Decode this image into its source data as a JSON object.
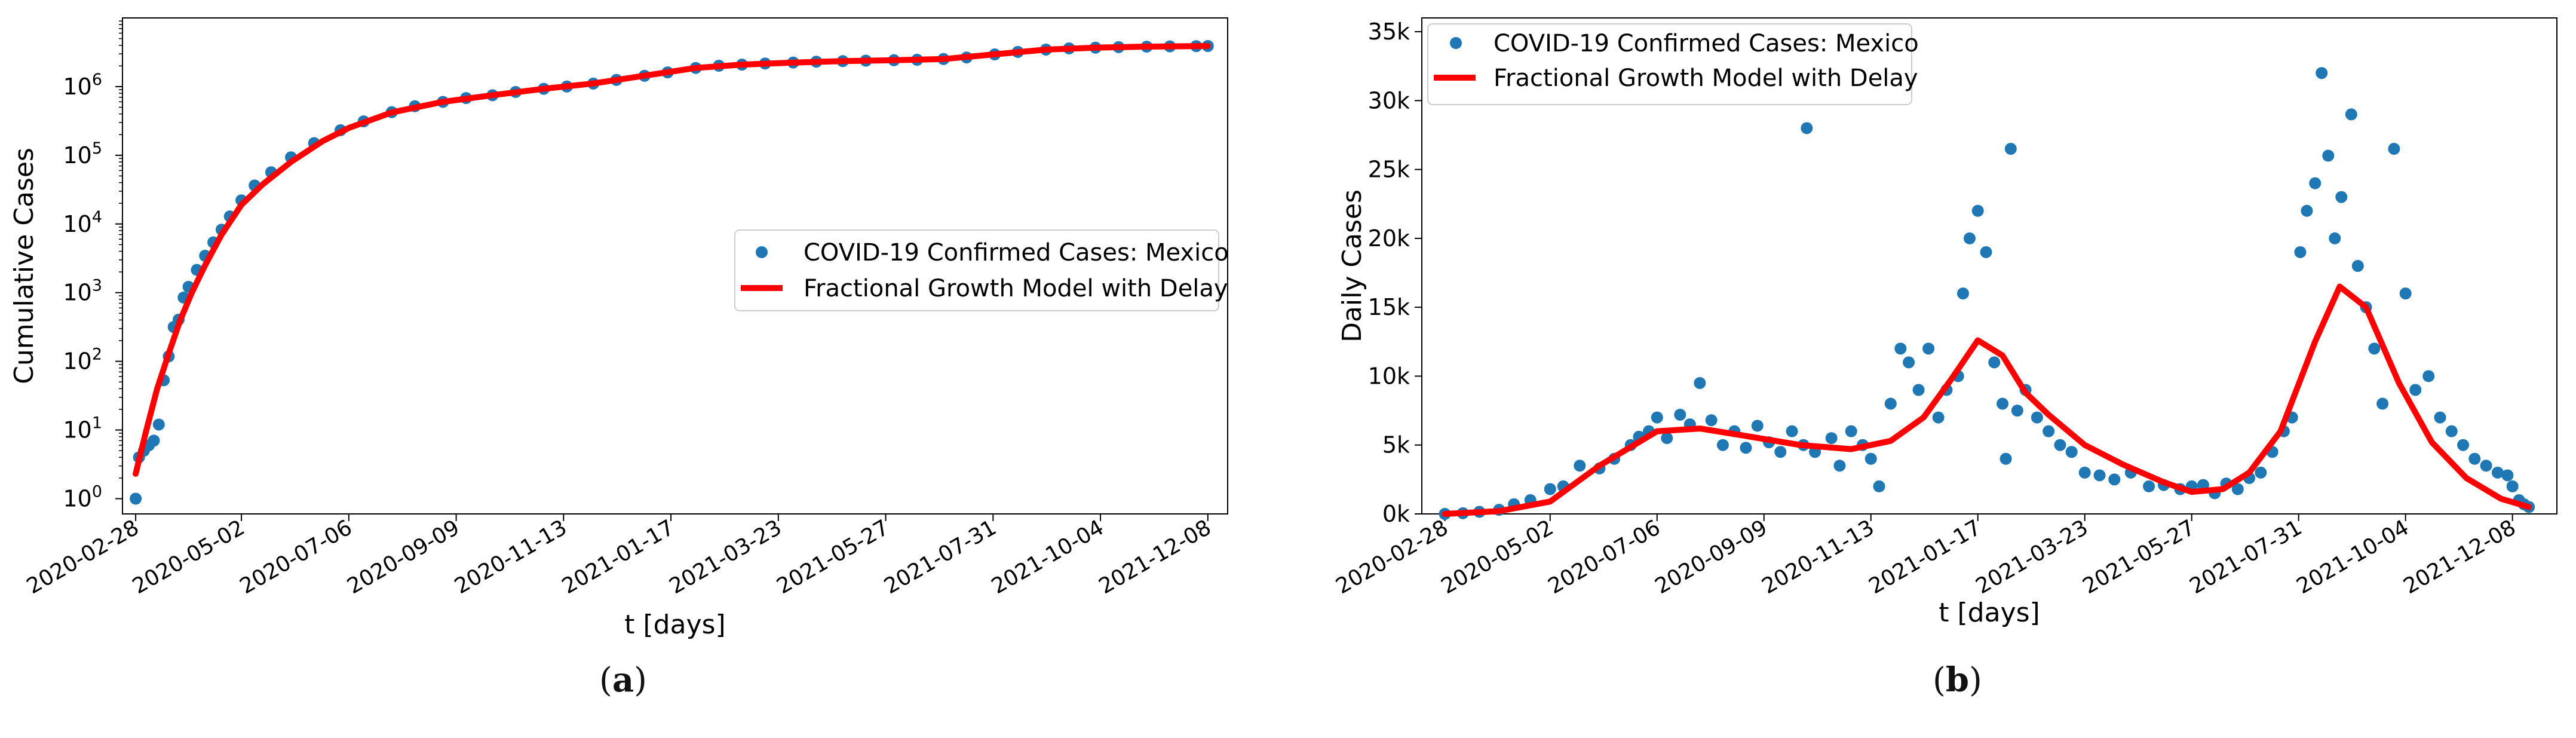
{
  "colors": {
    "points": "#1f77b4",
    "model": "#ff0000",
    "axis": "#000000"
  },
  "chart_data": [
    {
      "type": "scatter",
      "panel_label": "a",
      "xlabel": "t [days]",
      "ylabel": "Cumulative Cases",
      "yscale": "log",
      "ylim": [
        0.6,
        10000000
      ],
      "xlim": [
        "2020-02-20",
        "2021-12-20"
      ],
      "x_ticks": [
        "2020-02-28",
        "2020-05-02",
        "2020-07-06",
        "2020-09-09",
        "2020-11-13",
        "2021-01-17",
        "2021-03-23",
        "2021-05-27",
        "2021-07-31",
        "2021-10-04",
        "2021-12-08"
      ],
      "y_ticks": [
        {
          "value": 1,
          "base": "10",
          "exp": "0"
        },
        {
          "value": 10,
          "base": "10",
          "exp": "1"
        },
        {
          "value": 100,
          "base": "10",
          "exp": "2"
        },
        {
          "value": 1000,
          "base": "10",
          "exp": "3"
        },
        {
          "value": 10000,
          "base": "10",
          "exp": "4"
        },
        {
          "value": 100000,
          "base": "10",
          "exp": "5"
        },
        {
          "value": 1000000,
          "base": "10",
          "exp": "6"
        }
      ],
      "legend_position": "center-right",
      "series": [
        {
          "name": "COVID-19 Confirmed Cases: Mexico",
          "kind": "points",
          "x": [
            "2020-02-28",
            "2020-03-01",
            "2020-03-04",
            "2020-03-07",
            "2020-03-10",
            "2020-03-13",
            "2020-03-16",
            "2020-03-19",
            "2020-03-22",
            "2020-03-25",
            "2020-03-28",
            "2020-03-31",
            "2020-04-05",
            "2020-04-10",
            "2020-04-15",
            "2020-04-20",
            "2020-04-25",
            "2020-05-02",
            "2020-05-10",
            "2020-05-20",
            "2020-06-01",
            "2020-06-15",
            "2020-07-01",
            "2020-07-15",
            "2020-08-01",
            "2020-08-15",
            "2020-09-01",
            "2020-09-15",
            "2020-10-01",
            "2020-10-15",
            "2020-11-01",
            "2020-11-15",
            "2020-12-01",
            "2020-12-15",
            "2021-01-01",
            "2021-01-15",
            "2021-02-01",
            "2021-02-15",
            "2021-03-01",
            "2021-03-15",
            "2021-04-01",
            "2021-04-15",
            "2021-05-01",
            "2021-05-15",
            "2021-06-01",
            "2021-06-15",
            "2021-07-01",
            "2021-07-15",
            "2021-08-01",
            "2021-08-15",
            "2021-09-01",
            "2021-09-15",
            "2021-10-01",
            "2021-10-15",
            "2021-11-01",
            "2021-11-15",
            "2021-12-01",
            "2021-12-08"
          ],
          "y": [
            1,
            4,
            5,
            6,
            7,
            12,
            53,
            118,
            316,
            405,
            848,
            1215,
            2143,
            3441,
            5399,
            8261,
            12872,
            22088,
            36327,
            56594,
            93435,
            150264,
            231770,
            311486,
            424637,
            517714,
            599560,
            680931,
            748315,
            834910,
            929392,
            1003253,
            1107071,
            1250044,
            1437185,
            1609735,
            1869708,
            2013563,
            2089281,
            2169007,
            2242963,
            2304096,
            2348873,
            2387512,
            2421000,
            2458000,
            2520000,
            2655000,
            2943000,
            3200000,
            3460000,
            3601000,
            3690000,
            3757000,
            3817000,
            3852000,
            3884000,
            3900000
          ]
        },
        {
          "name": "Fractional Growth Model with Delay",
          "kind": "line",
          "x": [
            "2020-02-28",
            "2020-03-05",
            "2020-03-12",
            "2020-03-19",
            "2020-03-26",
            "2020-04-02",
            "2020-04-10",
            "2020-04-20",
            "2020-05-02",
            "2020-05-15",
            "2020-06-01",
            "2020-06-20",
            "2020-07-06",
            "2020-08-01",
            "2020-09-01",
            "2020-10-01",
            "2020-11-01",
            "2020-12-01",
            "2021-01-01",
            "2021-02-01",
            "2021-03-01",
            "2021-04-01",
            "2021-05-01",
            "2021-06-01",
            "2021-07-01",
            "2021-08-01",
            "2021-09-01",
            "2021-10-01",
            "2021-11-01",
            "2021-12-08"
          ],
          "y": [
            2.3,
            9,
            40,
            130,
            400,
            1000,
            2500,
            7000,
            19000,
            38000,
            80000,
            160000,
            250000,
            420000,
            600000,
            750000,
            930000,
            1110000,
            1440000,
            1870000,
            2090000,
            2240000,
            2350000,
            2420000,
            2520000,
            2950000,
            3460000,
            3690000,
            3820000,
            3900000
          ]
        }
      ]
    },
    {
      "type": "scatter",
      "panel_label": "b",
      "xlabel": "t [days]",
      "ylabel": "Daily Cases",
      "ylim": [
        0,
        36000
      ],
      "xlim": [
        "2020-02-14",
        "2022-01-04"
      ],
      "x_ticks": [
        "2020-02-28",
        "2020-05-02",
        "2020-07-06",
        "2020-09-09",
        "2020-11-13",
        "2021-01-17",
        "2021-03-23",
        "2021-05-27",
        "2021-07-31",
        "2021-10-04",
        "2021-12-08"
      ],
      "y_ticks": [
        {
          "value": 0,
          "label": "0k"
        },
        {
          "value": 5000,
          "label": "5k"
        },
        {
          "value": 10000,
          "label": "10k"
        },
        {
          "value": 15000,
          "label": "15k"
        },
        {
          "value": 20000,
          "label": "20k"
        },
        {
          "value": 25000,
          "label": "25k"
        },
        {
          "value": 30000,
          "label": "30k"
        },
        {
          "value": 35000,
          "label": "35k"
        }
      ],
      "legend_position": "top-left",
      "series": [
        {
          "name": "COVID-19 Confirmed Cases: Mexico",
          "kind": "points",
          "x": [
            "2020-02-28",
            "2020-03-10",
            "2020-03-20",
            "2020-04-01",
            "2020-04-10",
            "2020-04-20",
            "2020-05-02",
            "2020-05-10",
            "2020-05-20",
            "2020-06-01",
            "2020-06-10",
            "2020-06-20",
            "2020-06-25",
            "2020-07-01",
            "2020-07-06",
            "2020-07-12",
            "2020-07-20",
            "2020-07-26",
            "2020-08-01",
            "2020-08-08",
            "2020-08-15",
            "2020-08-22",
            "2020-08-29",
            "2020-09-05",
            "2020-09-12",
            "2020-09-19",
            "2020-09-26",
            "2020-10-03",
            "2020-10-05",
            "2020-10-10",
            "2020-10-20",
            "2020-10-25",
            "2020-11-01",
            "2020-11-08",
            "2020-11-13",
            "2020-11-18",
            "2020-11-25",
            "2020-12-01",
            "2020-12-06",
            "2020-12-12",
            "2020-12-18",
            "2020-12-24",
            "2020-12-29",
            "2021-01-05",
            "2021-01-08",
            "2021-01-12",
            "2021-01-17",
            "2021-01-22",
            "2021-01-27",
            "2021-02-01",
            "2021-02-03",
            "2021-02-06",
            "2021-02-10",
            "2021-02-15",
            "2021-02-22",
            "2021-03-01",
            "2021-03-08",
            "2021-03-15",
            "2021-03-23",
            "2021-04-01",
            "2021-04-10",
            "2021-04-20",
            "2021-05-01",
            "2021-05-10",
            "2021-05-20",
            "2021-05-27",
            "2021-06-03",
            "2021-06-10",
            "2021-06-17",
            "2021-06-24",
            "2021-07-01",
            "2021-07-08",
            "2021-07-15",
            "2021-07-22",
            "2021-07-27",
            "2021-08-01",
            "2021-08-05",
            "2021-08-10",
            "2021-08-14",
            "2021-08-18",
            "2021-08-22",
            "2021-08-26",
            "2021-09-01",
            "2021-09-05",
            "2021-09-10",
            "2021-09-15",
            "2021-09-20",
            "2021-09-27",
            "2021-10-04",
            "2021-10-10",
            "2021-10-18",
            "2021-10-25",
            "2021-11-01",
            "2021-11-08",
            "2021-11-15",
            "2021-11-22",
            "2021-11-29",
            "2021-12-05",
            "2021-12-08",
            "2021-12-12",
            "2021-12-15",
            "2021-12-18"
          ],
          "y": [
            0,
            50,
            150,
            300,
            700,
            1000,
            1800,
            2000,
            3500,
            3300,
            4000,
            5000,
            5600,
            6000,
            7000,
            5500,
            7200,
            6500,
            9500,
            6800,
            5000,
            6000,
            4800,
            6400,
            5200,
            4500,
            6000,
            5000,
            28000,
            4500,
            5500,
            3500,
            6000,
            5000,
            4000,
            2000,
            8000,
            12000,
            11000,
            9000,
            12000,
            7000,
            9000,
            10000,
            16000,
            20000,
            22000,
            19000,
            11000,
            8000,
            4000,
            26500,
            7500,
            9000,
            7000,
            6000,
            5000,
            4500,
            3000,
            2800,
            2500,
            3000,
            2000,
            2100,
            1800,
            2000,
            2100,
            1500,
            2200,
            1800,
            2600,
            3000,
            4500,
            6000,
            7000,
            19000,
            22000,
            24000,
            32000,
            26000,
            20000,
            23000,
            29000,
            18000,
            15000,
            12000,
            8000,
            26500,
            16000,
            9000,
            10000,
            7000,
            6000,
            5000,
            4000,
            3500,
            3000,
            2800,
            2000,
            1000,
            700,
            500
          ]
        },
        {
          "name": "Fractional Growth Model with Delay",
          "kind": "line",
          "x": [
            "2020-02-28",
            "2020-04-01",
            "2020-05-02",
            "2020-06-01",
            "2020-07-06",
            "2020-08-01",
            "2020-09-01",
            "2020-10-01",
            "2020-11-01",
            "2020-11-25",
            "2020-12-15",
            "2021-01-01",
            "2021-01-17",
            "2021-02-01",
            "2021-02-15",
            "2021-03-01",
            "2021-03-23",
            "2021-04-15",
            "2021-05-10",
            "2021-05-27",
            "2021-06-15",
            "2021-07-01",
            "2021-07-20",
            "2021-08-10",
            "2021-08-25",
            "2021-09-10",
            "2021-09-30",
            "2021-10-20",
            "2021-11-10",
            "2021-12-01",
            "2021-12-18"
          ],
          "y": [
            0,
            200,
            900,
            3500,
            6000,
            6200,
            5600,
            5000,
            4700,
            5300,
            7000,
            9800,
            12600,
            11500,
            8800,
            7200,
            5000,
            3600,
            2300,
            1600,
            1800,
            3000,
            6000,
            12500,
            16500,
            15000,
            9500,
            5200,
            2600,
            1100,
            500
          ]
        }
      ]
    }
  ]
}
